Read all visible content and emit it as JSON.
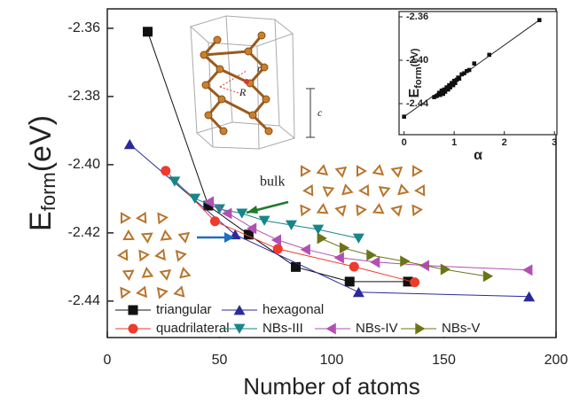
{
  "chart_data": [
    {
      "type": "line",
      "xlabel": "Number of atoms",
      "ylabel": {
        "main": "E",
        "sub": "form",
        "unit": "(eV)"
      },
      "xlim": [
        0,
        200
      ],
      "xticks": [
        0,
        50,
        100,
        150,
        200
      ],
      "ylim": [
        -2.4507,
        -2.3543
      ],
      "yticks": [
        -2.44,
        -2.42,
        {
          "value": -2.4,
          "label": "-2.40"
        },
        -2.38,
        -2.36
      ],
      "annotation": "bulk",
      "structure_labels": [
        "R",
        "r",
        "c"
      ],
      "series": [
        {
          "name": "triangular",
          "color": "#111111",
          "marker": "square",
          "x": [
            18,
            45,
            63,
            84,
            108,
            134
          ],
          "values": [
            -2.361,
            -2.412,
            -2.4205,
            -2.43,
            -2.4343,
            -2.4343
          ]
        },
        {
          "name": "hexagonal",
          "color": "#2a2a9c",
          "marker": "triangle-up",
          "x": [
            10,
            57,
            112,
            188
          ],
          "values": [
            -2.394,
            -2.4205,
            -2.4374,
            -2.4387
          ]
        },
        {
          "name": "quadrilateral",
          "color": "#ee3b2b",
          "marker": "circle",
          "x": [
            26,
            48,
            76,
            110,
            137
          ],
          "values": [
            -2.4018,
            -2.4166,
            -2.4247,
            -2.4299,
            -2.4345
          ]
        },
        {
          "name": "NBs-III",
          "color": "#17868a",
          "marker": "triangle-down",
          "x": [
            30,
            39,
            50,
            60,
            70,
            82,
            94,
            112
          ],
          "values": [
            -2.4049,
            -2.4099,
            -2.413,
            -2.4143,
            -2.4164,
            -2.4177,
            -2.419,
            -2.4216
          ]
        },
        {
          "name": "NBs-IV",
          "color": "#b24fb5",
          "marker": "triangle-left",
          "x": [
            46,
            54,
            65,
            76,
            89,
            104,
            120,
            142,
            188
          ],
          "values": [
            -2.4109,
            -2.4143,
            -2.4187,
            -2.4221,
            -2.4249,
            -2.4273,
            -2.4286,
            -2.4296,
            -2.4309
          ]
        },
        {
          "name": "NBs-V",
          "color": "#6b7417",
          "marker": "triangle-right",
          "x": [
            95,
            105,
            117,
            132,
            150,
            169
          ],
          "values": [
            -2.4216,
            -2.4244,
            -2.4265,
            -2.4283,
            -2.4307,
            -2.4327
          ]
        }
      ]
    },
    {
      "type": "scatter",
      "xlabel": "α",
      "ylabel": {
        "main": "E",
        "sub": "form",
        "unit": "(eV)"
      },
      "xlim": [
        -0.1,
        3.05
      ],
      "xticks": [
        0,
        1,
        2,
        3
      ],
      "ylim": [
        -2.4686,
        -2.3551
      ],
      "yticks": [
        -2.44,
        {
          "value": -2.4,
          "label": "-2.40"
        },
        -2.36
      ],
      "color": "#111111",
      "x": [
        0,
        0.6,
        0.65,
        0.7,
        0.72,
        0.75,
        0.78,
        0.8,
        0.82,
        0.85,
        0.88,
        0.9,
        0.92,
        0.95,
        0.98,
        1.0,
        1.02,
        1.05,
        1.08,
        1.1,
        1.15,
        1.2,
        1.25,
        1.3,
        1.4,
        1.7,
        2.7
      ],
      "values": [
        -2.452,
        -2.434,
        -2.433,
        -2.43,
        -2.432,
        -2.428,
        -2.431,
        -2.427,
        -2.429,
        -2.425,
        -2.427,
        -2.423,
        -2.425,
        -2.421,
        -2.423,
        -2.419,
        -2.421,
        -2.418,
        -2.416,
        -2.417,
        -2.413,
        -2.412,
        -2.41,
        -2.409,
        -2.403,
        -2.395,
        -2.363
      ],
      "fit": {
        "x": [
          0,
          2.7
        ],
        "values": [
          -2.452,
          -2.363
        ]
      }
    }
  ]
}
